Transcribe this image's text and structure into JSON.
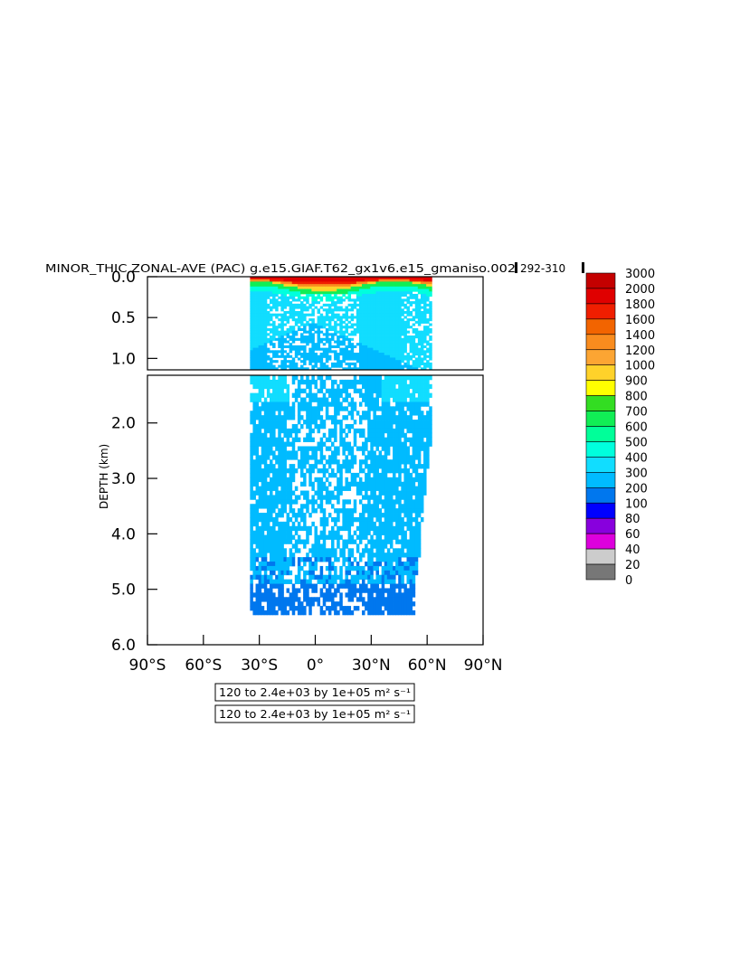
{
  "chart_data": {
    "type": "heatmap",
    "title": "MINOR_THIC ZONAL-AVE (PAC) g.e15.GIAF.T62_gx1v6.e15_gmaniso.002c",
    "year_range": "292-310",
    "ylabel": "DEPTH (km)",
    "xlabel": "",
    "x_range": [
      -90,
      90
    ],
    "y_range": [
      0.0,
      6.0
    ],
    "y_break": 1.14,
    "x_ticks": [
      {
        "value": -90,
        "label": "90°S"
      },
      {
        "value": -60,
        "label": "60°S"
      },
      {
        "value": -30,
        "label": "30°S"
      },
      {
        "value": 0,
        "label": "0°"
      },
      {
        "value": 30,
        "label": "30°N"
      },
      {
        "value": 60,
        "label": "60°N"
      },
      {
        "value": 90,
        "label": "90°N"
      }
    ],
    "y_ticks_upper": [
      {
        "value": 0.0,
        "label": "0.0"
      },
      {
        "value": 0.5,
        "label": "0.5"
      },
      {
        "value": 1.0,
        "label": "1.0"
      }
    ],
    "y_ticks_lower": [
      {
        "value": 2.0,
        "label": "2.0"
      },
      {
        "value": 3.0,
        "label": "3.0"
      },
      {
        "value": 4.0,
        "label": "4.0"
      },
      {
        "value": 5.0,
        "label": "5.0"
      },
      {
        "value": 6.0,
        "label": "6.0"
      }
    ],
    "colorbar": {
      "levels": [
        "3000",
        "2000",
        "1800",
        "1600",
        "1400",
        "1200",
        "1000",
        "900",
        "800",
        "700",
        "600",
        "500",
        "400",
        "300",
        "200",
        "100",
        "80",
        "60",
        "40",
        "20",
        "0"
      ],
      "colors": [
        "#c40000",
        "#e00000",
        "#f01e00",
        "#f26400",
        "#f98c1e",
        "#fca533",
        "#ffd22a",
        "#ffff00",
        "#33dd22",
        "#11ee55",
        "#00ff99",
        "#00ffdd",
        "#11ddff",
        "#00bbff",
        "#0077ee",
        "#0000ff",
        "#8800dd",
        "#dd00dd",
        "#cccccc",
        "#777777"
      ]
    },
    "field_extent": {
      "lat_min": -35,
      "lat_max": 62,
      "depth_max": 5.4
    },
    "contour_info": [
      "120 to 2.4e+03 by 1e+05 m² s⁻¹",
      "120 to 2.4e+03 by 1e+05 m² s⁻¹"
    ]
  }
}
